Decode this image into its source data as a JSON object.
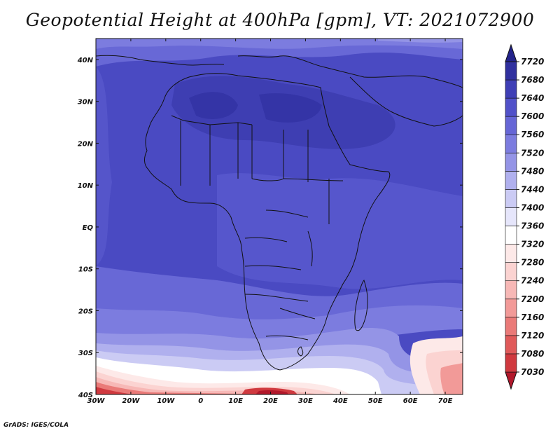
{
  "title": "Geopotential Height at 400hPa [gpm], VT: 2021072900",
  "credit": "GrADS: IGES/COLA",
  "map": {
    "lon_labels": [
      "30W",
      "20W",
      "10W",
      "0",
      "10E",
      "20E",
      "30E",
      "40E",
      "50E",
      "60E",
      "70E"
    ],
    "lat_labels": [
      "40N",
      "30N",
      "20N",
      "10N",
      "EQ",
      "10S",
      "20S",
      "30S",
      "40S"
    ],
    "lon_range": [
      -30,
      75
    ],
    "lat_range": [
      -40,
      45
    ]
  },
  "colorbar": {
    "levels": [
      7030,
      7080,
      7120,
      7160,
      7200,
      7240,
      7280,
      7320,
      7360,
      7400,
      7440,
      7480,
      7520,
      7560,
      7600,
      7640,
      7680,
      7720
    ],
    "labels": [
      "7030",
      "7080",
      "7120",
      "7160",
      "7200",
      "7240",
      "7280",
      "7320",
      "7360",
      "7400",
      "7440",
      "7480",
      "7520",
      "7560",
      "7600",
      "7640",
      "7680",
      "7720"
    ],
    "colors": [
      "#b2182b",
      "#d0393f",
      "#e05a5a",
      "#ea7a78",
      "#f29a98",
      "#f7b8b6",
      "#fbd3d1",
      "#fde9e8",
      "#ffffff",
      "#e6e6fb",
      "#cbcbf4",
      "#b0b0ee",
      "#9494e6",
      "#7c7cdf",
      "#6666d6",
      "#5151c9",
      "#3f3fb6",
      "#30309f",
      "#23238a"
    ]
  }
}
